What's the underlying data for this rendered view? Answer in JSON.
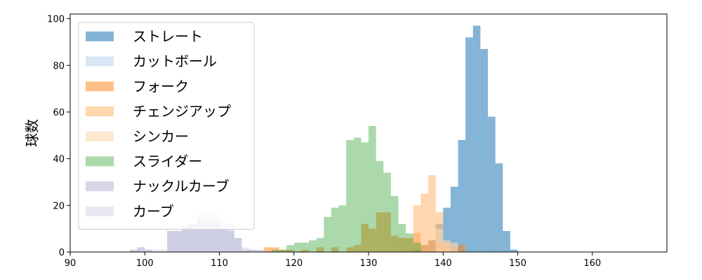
{
  "chart_data": {
    "type": "histogram",
    "ylabel": "球数",
    "xlim": [
      90,
      170
    ],
    "ylim": [
      0,
      102
    ],
    "xticks": [
      90,
      100,
      110,
      120,
      130,
      140,
      150,
      160
    ],
    "yticks": [
      0,
      20,
      40,
      60,
      80,
      100
    ],
    "bin_width": 1,
    "legend_position": "upper-left",
    "series": [
      {
        "name": "ストレート",
        "color": "#1f77b4",
        "alpha": 0.55,
        "bins": [
          [
            136,
            1
          ],
          [
            137,
            3
          ],
          [
            138,
            5
          ],
          [
            139,
            12
          ],
          [
            140,
            19
          ],
          [
            141,
            28
          ],
          [
            142,
            48
          ],
          [
            143,
            92
          ],
          [
            144,
            97
          ],
          [
            145,
            87
          ],
          [
            146,
            58
          ],
          [
            147,
            38
          ],
          [
            148,
            9
          ],
          [
            149,
            1
          ]
        ]
      },
      {
        "name": "カットボール",
        "color": "#aec7e8",
        "alpha": 0.45,
        "bins": []
      },
      {
        "name": "フォーク",
        "color": "#ff7f0e",
        "alpha": 0.5,
        "bins": [
          [
            116,
            2
          ],
          [
            117,
            2
          ],
          [
            118,
            1
          ],
          [
            119,
            1
          ],
          [
            121,
            1
          ],
          [
            123,
            2
          ],
          [
            125,
            2
          ],
          [
            127,
            2
          ],
          [
            128,
            3
          ],
          [
            129,
            12
          ],
          [
            130,
            10
          ],
          [
            131,
            17
          ],
          [
            132,
            17
          ],
          [
            133,
            7
          ],
          [
            134,
            6
          ],
          [
            135,
            6
          ],
          [
            136,
            8
          ],
          [
            137,
            3
          ],
          [
            138,
            5
          ],
          [
            139,
            4
          ],
          [
            140,
            3
          ],
          [
            141,
            2
          ],
          [
            142,
            3
          ]
        ]
      },
      {
        "name": "チェンジアップ",
        "color": "#ffbb78",
        "alpha": 0.6,
        "bins": [
          [
            135,
            6
          ],
          [
            136,
            20
          ],
          [
            137,
            25
          ],
          [
            138,
            33
          ],
          [
            139,
            17
          ],
          [
            140,
            4
          ]
        ]
      },
      {
        "name": "シンカー",
        "color": "#ffd8b0",
        "alpha": 0.6,
        "bins": [
          [
            139,
            10
          ],
          [
            140,
            5
          ],
          [
            141,
            4
          ]
        ]
      },
      {
        "name": "スライダー",
        "color": "#2ca02c",
        "alpha": 0.4,
        "bins": [
          [
            117,
            1
          ],
          [
            118,
            1
          ],
          [
            119,
            3
          ],
          [
            120,
            4
          ],
          [
            121,
            4
          ],
          [
            122,
            5
          ],
          [
            123,
            6
          ],
          [
            124,
            15
          ],
          [
            125,
            19
          ],
          [
            126,
            20
          ],
          [
            127,
            48
          ],
          [
            128,
            49
          ],
          [
            129,
            47
          ],
          [
            130,
            54
          ],
          [
            131,
            39
          ],
          [
            132,
            34
          ],
          [
            133,
            24
          ],
          [
            134,
            12
          ],
          [
            135,
            8
          ],
          [
            136,
            4
          ]
        ]
      },
      {
        "name": "ナックルカーブ",
        "color": "#9e9ac8",
        "alpha": 0.4,
        "bins": [
          [
            98,
            1
          ],
          [
            99,
            2
          ],
          [
            100,
            1
          ],
          [
            103,
            9
          ],
          [
            104,
            9
          ],
          [
            105,
            11
          ],
          [
            106,
            12
          ],
          [
            107,
            14
          ],
          [
            108,
            14
          ],
          [
            109,
            13
          ],
          [
            110,
            10
          ],
          [
            111,
            9
          ],
          [
            112,
            6
          ],
          [
            113,
            1
          ],
          [
            114,
            1
          ],
          [
            115,
            1
          ]
        ]
      },
      {
        "name": "カーブ",
        "color": "#bcbddc",
        "alpha": 0.35,
        "bins": [
          [
            98,
            1
          ],
          [
            99,
            2
          ],
          [
            100,
            1
          ],
          [
            101,
            1
          ],
          [
            102,
            1
          ],
          [
            103,
            9
          ],
          [
            104,
            9
          ],
          [
            105,
            11
          ],
          [
            106,
            12
          ],
          [
            107,
            16
          ],
          [
            108,
            17
          ],
          [
            109,
            16
          ],
          [
            110,
            13
          ],
          [
            111,
            12
          ],
          [
            112,
            6
          ],
          [
            113,
            2
          ],
          [
            114,
            1
          ]
        ]
      }
    ]
  }
}
